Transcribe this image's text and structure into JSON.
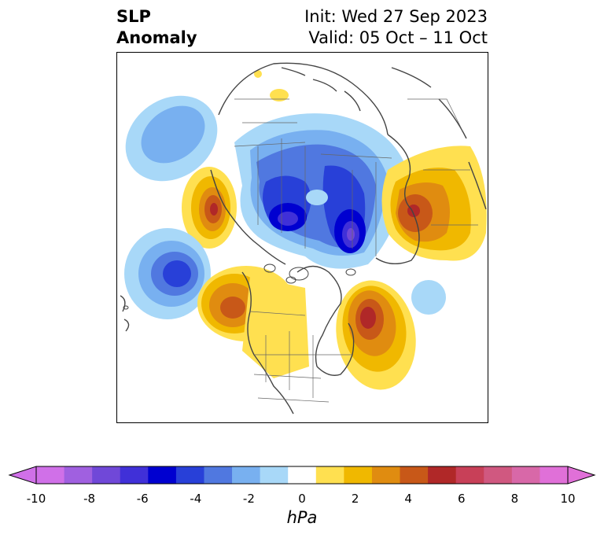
{
  "title": {
    "left_line1": "SLP",
    "left_line2": "Anomaly",
    "right_line1": "Init: Wed 27 Sep 2023",
    "right_line2": "Valid: 05 Oct – 11 Oct"
  },
  "colorbar": {
    "unit": "hPa",
    "ticks": [
      "-10",
      "-8",
      "-6",
      "-4",
      "-2",
      "0",
      "2",
      "4",
      "6",
      "8",
      "10"
    ],
    "colors": [
      "#d070e8",
      "#a060e0",
      "#7048d8",
      "#4030d8",
      "#0000d0",
      "#2840d8",
      "#5078e0",
      "#78b0f0",
      "#a8d8f8",
      "#ffffff",
      "#ffe050",
      "#f0b800",
      "#e08c10",
      "#c85818",
      "#b02828",
      "#c84058",
      "#d05880",
      "#d868a8",
      "#e070d8"
    ],
    "extend_min_color": "#d070e8",
    "extend_max_color": "#e070d8"
  },
  "anomalies": [
    {
      "name": "north-pacific-high",
      "peak": 6
    },
    {
      "name": "arctic-low-west",
      "peak": -9
    },
    {
      "name": "arctic-low-east",
      "peak": -9
    },
    {
      "name": "eurasia-high",
      "peak": 6
    },
    {
      "name": "atlantic-low",
      "peak": -5
    },
    {
      "name": "pacific-low",
      "peak": -3
    },
    {
      "name": "western-north-america-high",
      "peak": 5
    },
    {
      "name": "north-atlantic-high",
      "peak": 7
    },
    {
      "name": "siberia-high",
      "peak": 1
    },
    {
      "name": "bering-low",
      "peak": -2
    }
  ]
}
